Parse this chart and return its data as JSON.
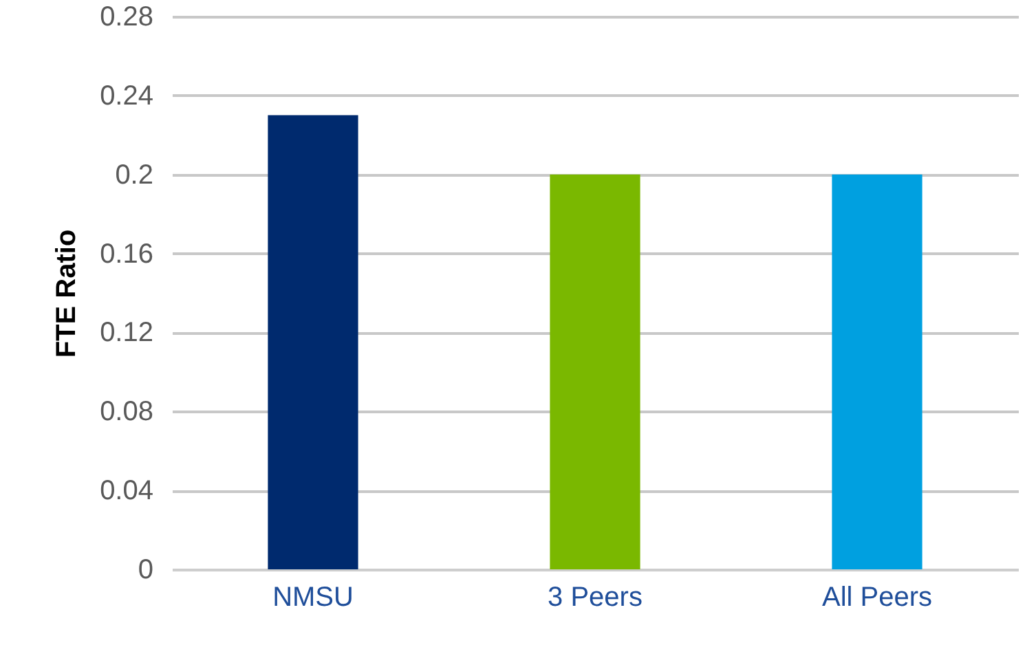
{
  "chart_data": {
    "type": "bar",
    "ylabel": "FTE Ratio",
    "categories": [
      "NMSU",
      "3 Peers",
      "All Peers"
    ],
    "values": [
      0.23,
      0.2,
      0.2
    ],
    "colors": [
      "#002a6e",
      "#7ab800",
      "#00a0e0"
    ],
    "ylim": [
      0,
      0.28
    ],
    "yticks": [
      0,
      0.04,
      0.08,
      0.12,
      0.16,
      0.2,
      0.24,
      0.28
    ],
    "grid": "y"
  }
}
